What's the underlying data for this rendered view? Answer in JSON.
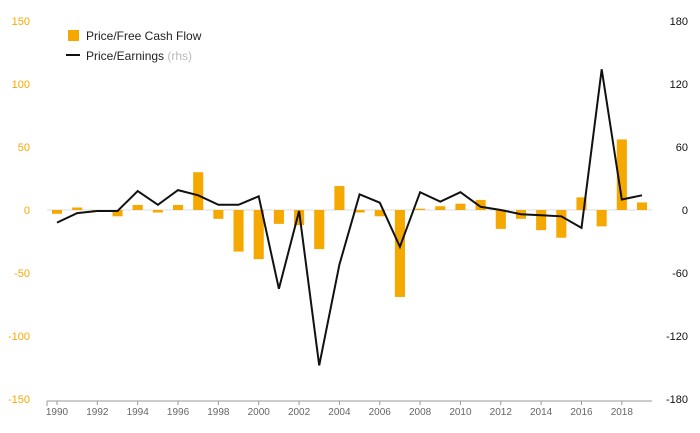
{
  "chart_data": {
    "type": "bar+line",
    "title": "",
    "x": [
      1990,
      1991,
      1992,
      1993,
      1994,
      1995,
      1996,
      1997,
      1998,
      1999,
      2000,
      2001,
      2002,
      2003,
      2004,
      2005,
      2006,
      2007,
      2008,
      2009,
      2010,
      2011,
      2012,
      2013,
      2014,
      2015,
      2016,
      2017,
      2018,
      2019
    ],
    "x_tick_labels": [
      "1990",
      "1992",
      "1994",
      "1996",
      "1998",
      "2000",
      "2002",
      "2004",
      "2006",
      "2008",
      "2010",
      "2012",
      "2014",
      "2016",
      "2018"
    ],
    "series": [
      {
        "name": "Price/Free Cash Flow",
        "type": "bar",
        "axis": "left",
        "color": "#f5a800",
        "values": [
          -3,
          2,
          -1,
          -5,
          4,
          -2,
          4,
          30,
          -7,
          -33,
          -39,
          -11,
          -12,
          -31,
          19,
          -2,
          -5,
          -69,
          1,
          3,
          5,
          8,
          -15,
          -7,
          -16,
          -22,
          10,
          -13,
          56,
          6
        ]
      },
      {
        "name": "Price/Earnings",
        "name_suffix": "(rhs)",
        "type": "line",
        "axis": "right",
        "color": "#111111",
        "values": [
          -12,
          -3,
          -1,
          -1,
          18,
          5,
          19,
          14,
          5,
          5,
          13,
          -75,
          -1,
          -148,
          -52,
          15,
          7,
          -35,
          17,
          8,
          17,
          3,
          0,
          -4,
          -5,
          -6,
          -17,
          134,
          10,
          14
        ]
      }
    ],
    "y_left": {
      "min": -150,
      "max": 150,
      "ticks": [
        "150",
        "100",
        "50",
        "0",
        "-50",
        "-100",
        "-150"
      ],
      "color": "#f5a800"
    },
    "y_right": {
      "min": -180,
      "max": 180,
      "ticks": [
        "180",
        "120",
        "60",
        "0",
        "-60",
        "-120",
        "-180"
      ],
      "color": "#111111"
    },
    "legend": {
      "position": "top-left"
    },
    "grid": false
  }
}
